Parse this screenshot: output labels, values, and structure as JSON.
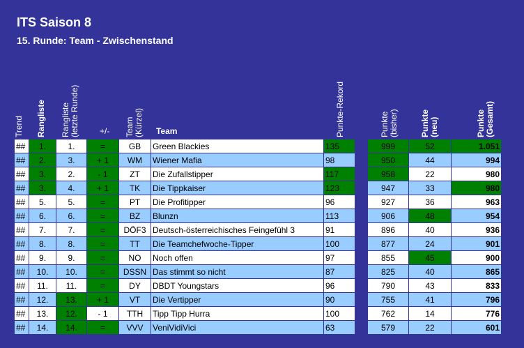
{
  "title": "ITS Saison 8",
  "subtitle": "15. Runde: Team - Zwischenstand",
  "headers": {
    "trend": "Trend",
    "rangliste": "Rangliste",
    "rangliste_letzte_1": "Rangliste",
    "rangliste_letzte_2": "(letzte Runde)",
    "plusminus": "+/-",
    "team_kuerzel_1": "Team",
    "team_kuerzel_2": "(Kürzel)",
    "team": "Team",
    "punkte_rekord": "Punkte-Rekord",
    "punkte_bisher_1": "Punkte",
    "punkte_bisher_2": "(bisher)",
    "punkte_neu_1": "Punkte",
    "punkte_neu_2": "(neu)",
    "punkte_gesamt_1": "Punkte",
    "punkte_gesamt_2": "(Gesamt)"
  },
  "colors": {
    "background": "#333399",
    "row_light": "#ffffff",
    "row_blue": "#99ccff",
    "highlight_green": "#008000"
  },
  "rows": [
    {
      "trend": "##",
      "rank": "1.",
      "prev": "1.",
      "pm": "=",
      "code": "GB",
      "team": "Green Blackies",
      "rekord": "135",
      "bisher": "999",
      "neu": "52",
      "gesamt": "1.051"
    },
    {
      "trend": "##",
      "rank": "2.",
      "prev": "3.",
      "pm": "+ 1",
      "code": "WM",
      "team": "Wiener Mafia",
      "rekord": "98",
      "bisher": "950",
      "neu": "44",
      "gesamt": "994"
    },
    {
      "trend": "##",
      "rank": "3.",
      "prev": "2.",
      "pm": "- 1",
      "code": "ZT",
      "team": "Die Zufallstipper",
      "rekord": "117",
      "bisher": "958",
      "neu": "22",
      "gesamt": "980"
    },
    {
      "trend": "##",
      "rank": "3.",
      "prev": "4.",
      "pm": "+ 1",
      "code": "TK",
      "team": "Die Tippkaiser",
      "rekord": "123",
      "bisher": "947",
      "neu": "33",
      "gesamt": "980"
    },
    {
      "trend": "##",
      "rank": "5.",
      "prev": "5.",
      "pm": "=",
      "code": "PT",
      "team": "Die Profitipper",
      "rekord": "96",
      "bisher": "927",
      "neu": "36",
      "gesamt": "963"
    },
    {
      "trend": "##",
      "rank": "6.",
      "prev": "6.",
      "pm": "=",
      "code": "BZ",
      "team": "Blunzn",
      "rekord": "113",
      "bisher": "906",
      "neu": "48",
      "gesamt": "954"
    },
    {
      "trend": "##",
      "rank": "7.",
      "prev": "7.",
      "pm": "=",
      "code": "DÖF3",
      "team": "Deutsch-österreichisches Feingefühl 3",
      "rekord": "91",
      "bisher": "896",
      "neu": "40",
      "gesamt": "936"
    },
    {
      "trend": "##",
      "rank": "8.",
      "prev": "8.",
      "pm": "=",
      "code": "TT",
      "team": "Die Teamchefwoche-Tipper",
      "rekord": "100",
      "bisher": "877",
      "neu": "24",
      "gesamt": "901"
    },
    {
      "trend": "##",
      "rank": "9.",
      "prev": "9.",
      "pm": "=",
      "code": "NO",
      "team": "Noch offen",
      "rekord": "97",
      "bisher": "855",
      "neu": "45",
      "gesamt": "900"
    },
    {
      "trend": "##",
      "rank": "10.",
      "prev": "10.",
      "pm": "=",
      "code": "DSSN",
      "team": "Das stimmt so nicht",
      "rekord": "87",
      "bisher": "825",
      "neu": "40",
      "gesamt": "865"
    },
    {
      "trend": "##",
      "rank": "11.",
      "prev": "11.",
      "pm": "=",
      "code": "DY",
      "team": "DBDT Youngstars",
      "rekord": "96",
      "bisher": "790",
      "neu": "43",
      "gesamt": "833"
    },
    {
      "trend": "##",
      "rank": "12.",
      "prev": "13.",
      "pm": "+ 1",
      "code": "VT",
      "team": "Die Vertipper",
      "rekord": "90",
      "bisher": "755",
      "neu": "41",
      "gesamt": "796"
    },
    {
      "trend": "##",
      "rank": "13.",
      "prev": "12.",
      "pm": "- 1",
      "code": "TTH",
      "team": "Tipp Tipp Hurra",
      "rekord": "100",
      "bisher": "762",
      "neu": "14",
      "gesamt": "776"
    },
    {
      "trend": "##",
      "rank": "14.",
      "prev": "14.",
      "pm": "=",
      "code": "VVV",
      "team": "VeniVidiVici",
      "rekord": "63",
      "bisher": "579",
      "neu": "22",
      "gesamt": "601"
    }
  ],
  "highlights": [
    {
      "row": 0,
      "cols": [
        "rank",
        "pm",
        "rekord",
        "bisher",
        "neu",
        "gesamt"
      ]
    },
    {
      "row": 1,
      "cols": [
        "rank",
        "pm",
        "bisher"
      ]
    },
    {
      "row": 2,
      "cols": [
        "rank",
        "pm",
        "rekord",
        "bisher"
      ]
    },
    {
      "row": 3,
      "cols": [
        "rank",
        "pm",
        "rekord",
        "gesamt"
      ]
    },
    {
      "row": 4,
      "cols": [
        "pm"
      ]
    },
    {
      "row": 5,
      "cols": [
        "pm",
        "neu"
      ]
    },
    {
      "row": 6,
      "cols": [
        "pm"
      ]
    },
    {
      "row": 7,
      "cols": [
        "pm"
      ]
    },
    {
      "row": 8,
      "cols": [
        "pm",
        "neu"
      ]
    },
    {
      "row": 9,
      "cols": [
        "pm"
      ]
    },
    {
      "row": 10,
      "cols": [
        "pm"
      ]
    },
    {
      "row": 11,
      "cols": [
        "pm",
        "prev"
      ]
    },
    {
      "row": 12,
      "cols": [
        "prev"
      ]
    },
    {
      "row": 13,
      "cols": [
        "pm",
        "prev"
      ]
    }
  ]
}
